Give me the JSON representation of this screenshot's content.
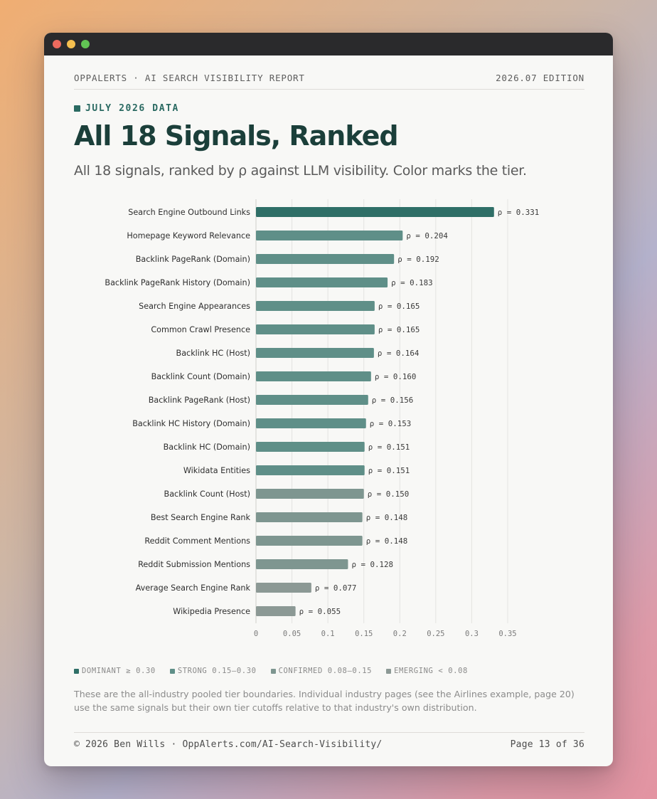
{
  "window": {
    "controls": [
      "close",
      "minimize",
      "zoom"
    ]
  },
  "header": {
    "left": "OPPALERTS · AI SEARCH VISIBILITY REPORT",
    "right": "2026.07 EDITION"
  },
  "kicker": "JULY 2026 DATA",
  "title": "All 18 Signals, Ranked",
  "subtitle": "All 18 signals, ranked by ρ against LLM visibility. Color marks the tier.",
  "chart_data": {
    "type": "bar",
    "orientation": "horizontal",
    "categories": [
      "Search Engine Outbound Links",
      "Homepage Keyword Relevance",
      "Backlink PageRank (Domain)",
      "Backlink PageRank History (Domain)",
      "Search Engine Appearances",
      "Common Crawl Presence",
      "Backlink HC (Host)",
      "Backlink Count (Domain)",
      "Backlink PageRank (Host)",
      "Backlink HC History (Domain)",
      "Backlink HC (Domain)",
      "Wikidata Entities",
      "Backlink Count (Host)",
      "Best Search Engine Rank",
      "Reddit Comment Mentions",
      "Reddit Submission Mentions",
      "Average Search Engine Rank",
      "Wikipedia Presence"
    ],
    "values": [
      0.331,
      0.204,
      0.192,
      0.183,
      0.165,
      0.165,
      0.164,
      0.16,
      0.156,
      0.153,
      0.151,
      0.151,
      0.15,
      0.148,
      0.148,
      0.128,
      0.077,
      0.055
    ],
    "value_labels": [
      "ρ = 0.331",
      "ρ = 0.204",
      "ρ = 0.192",
      "ρ = 0.183",
      "ρ = 0.165",
      "ρ = 0.165",
      "ρ = 0.164",
      "ρ = 0.160",
      "ρ = 0.156",
      "ρ = 0.153",
      "ρ = 0.151",
      "ρ = 0.151",
      "ρ = 0.150",
      "ρ = 0.148",
      "ρ = 0.148",
      "ρ = 0.128",
      "ρ = 0.077",
      "ρ = 0.055"
    ],
    "tiers": [
      "dominant",
      "strong",
      "strong",
      "strong",
      "strong",
      "strong",
      "strong",
      "strong",
      "strong",
      "strong",
      "strong",
      "strong",
      "confirmed",
      "confirmed",
      "confirmed",
      "confirmed",
      "emerging",
      "emerging"
    ],
    "xlim": [
      0,
      0.35
    ],
    "xticks": [
      0,
      0.05,
      0.1,
      0.15,
      0.2,
      0.25,
      0.3,
      0.35
    ],
    "xtick_labels": [
      "0",
      "0.05",
      "0.1",
      "0.15",
      "0.2",
      "0.25",
      "0.3",
      "0.35"
    ],
    "grid": "vertical",
    "legend": "bottom-left"
  },
  "legend": [
    {
      "key": "dominant",
      "label": "DOMINANT ≥ 0.30",
      "color": "#2f6f67"
    },
    {
      "key": "strong",
      "label": "STRONG 0.15–0.30",
      "color": "#5f8f88"
    },
    {
      "key": "confirmed",
      "label": "CONFIRMED 0.08–0.15",
      "color": "#7e9690"
    },
    {
      "key": "emerging",
      "label": "EMERGING < 0.08",
      "color": "#8c9995"
    }
  ],
  "note": "These are the all-industry pooled tier boundaries. Individual industry pages (see the Airlines example, page 20) use the same signals but their own tier cutoffs relative to that industry's own distribution.",
  "footer": {
    "left": "© 2026 Ben Wills · OppAlerts.com/AI-Search-Visibility/",
    "right": "Page 13 of 36"
  }
}
